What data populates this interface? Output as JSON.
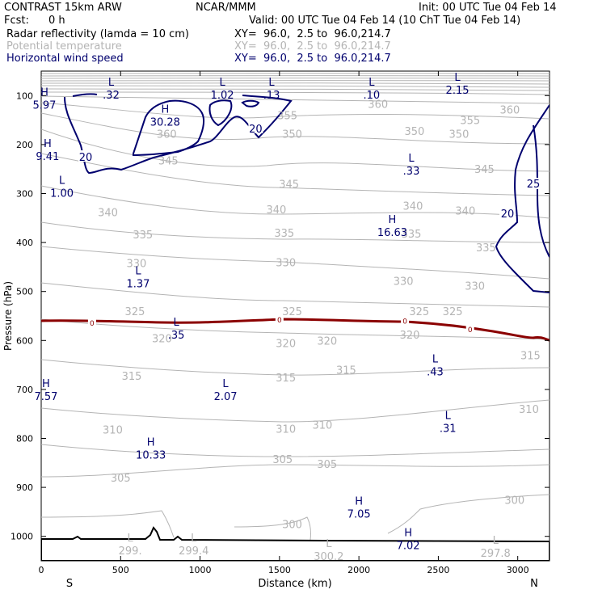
{
  "header": {
    "model": "CONTRAST 15km ARW",
    "org": "NCAR/MMM",
    "init": "Init: 00 UTC Tue 04 Feb 14",
    "fcst_label": "Fcst:",
    "fcst_value": "0 h",
    "valid": "Valid: 00 UTC Tue 04 Feb 14 (10 ChT Tue 04 Feb 14)"
  },
  "fields": [
    {
      "name": "Radar reflectivity (lamda = 10 cm)",
      "xy": "XY=  96.0,  2.5 to  96.0,214.7",
      "color": "#000000"
    },
    {
      "name": "Potential temperature",
      "xy": "XY=  96.0,  2.5 to  96.0,214.7",
      "color": "#b4b4b4"
    },
    {
      "name": "Horizontal wind speed",
      "xy": "XY=  96.0,  2.5 to  96.0,214.7",
      "color": "#00006e"
    }
  ],
  "colors": {
    "theta": "#b4b4b4",
    "wind": "#00006e",
    "reflectivity": "#8b0000",
    "terrain": "#000000"
  },
  "chart_data": {
    "type": "contour_cross_section",
    "xlabel": "Distance (km)",
    "ylabel": "Pressure (hPa)",
    "xlim": [
      0,
      3200
    ],
    "ylim": [
      1050,
      50
    ],
    "x_ticks": [
      0,
      500,
      1000,
      1500,
      2000,
      2500,
      3000
    ],
    "y_ticks": [
      100,
      200,
      300,
      400,
      500,
      600,
      700,
      800,
      900,
      1000
    ],
    "start_label": "S",
    "end_label": "N",
    "theta_labels": [
      {
        "x": 2120,
        "p": 117,
        "v": "360"
      },
      {
        "x": 2950,
        "p": 128,
        "v": "360"
      },
      {
        "x": 1550,
        "p": 140,
        "v": "355"
      },
      {
        "x": 2700,
        "p": 150,
        "v": "355"
      },
      {
        "x": 790,
        "p": 178,
        "v": "360"
      },
      {
        "x": 1580,
        "p": 178,
        "v": "350"
      },
      {
        "x": 2350,
        "p": 172,
        "v": "350"
      },
      {
        "x": 2630,
        "p": 178,
        "v": "350"
      },
      {
        "x": 800,
        "p": 232,
        "v": "345"
      },
      {
        "x": 1560,
        "p": 280,
        "v": "345"
      },
      {
        "x": 2790,
        "p": 250,
        "v": "345"
      },
      {
        "x": 1480,
        "p": 332,
        "v": "340"
      },
      {
        "x": 2340,
        "p": 325,
        "v": "340"
      },
      {
        "x": 2670,
        "p": 335,
        "v": "340"
      },
      {
        "x": 420,
        "p": 338,
        "v": "340"
      },
      {
        "x": 640,
        "p": 383,
        "v": "335"
      },
      {
        "x": 1530,
        "p": 380,
        "v": "335"
      },
      {
        "x": 2330,
        "p": 382,
        "v": "335"
      },
      {
        "x": 2800,
        "p": 410,
        "v": "335"
      },
      {
        "x": 600,
        "p": 442,
        "v": "330"
      },
      {
        "x": 1540,
        "p": 440,
        "v": "330"
      },
      {
        "x": 2280,
        "p": 478,
        "v": "330"
      },
      {
        "x": 2730,
        "p": 488,
        "v": "330"
      },
      {
        "x": 590,
        "p": 540,
        "v": "325"
      },
      {
        "x": 1580,
        "p": 540,
        "v": "325"
      },
      {
        "x": 2380,
        "p": 540,
        "v": "325"
      },
      {
        "x": 2590,
        "p": 540,
        "v": "325"
      },
      {
        "x": 760,
        "p": 595,
        "v": "320"
      },
      {
        "x": 1540,
        "p": 605,
        "v": "320"
      },
      {
        "x": 1800,
        "p": 600,
        "v": "320"
      },
      {
        "x": 2320,
        "p": 588,
        "v": "320"
      },
      {
        "x": 3080,
        "p": 630,
        "v": "315"
      },
      {
        "x": 570,
        "p": 672,
        "v": "315"
      },
      {
        "x": 1540,
        "p": 675,
        "v": "315"
      },
      {
        "x": 1920,
        "p": 660,
        "v": "315"
      },
      {
        "x": 3070,
        "p": 740,
        "v": "310"
      },
      {
        "x": 450,
        "p": 782,
        "v": "310"
      },
      {
        "x": 1540,
        "p": 780,
        "v": "310"
      },
      {
        "x": 1770,
        "p": 772,
        "v": "310"
      },
      {
        "x": 1520,
        "p": 842,
        "v": "305"
      },
      {
        "x": 1800,
        "p": 852,
        "v": "305"
      },
      {
        "x": 500,
        "p": 880,
        "v": "305"
      },
      {
        "x": 2980,
        "p": 925,
        "v": "300"
      },
      {
        "x": 1580,
        "p": 975,
        "v": "300"
      }
    ],
    "wind_labels": [
      {
        "x": 280,
        "p": 225,
        "v": "20"
      },
      {
        "x": 1350,
        "p": 167,
        "v": "20"
      },
      {
        "x": 2930,
        "p": 710,
        "v": "20",
        "note": "placeholder"
      }
    ],
    "reflectivity_labels": [
      {
        "x": 320,
        "p": 565,
        "v": "0"
      },
      {
        "x": 1500,
        "p": 558,
        "v": "0"
      },
      {
        "x": 2290,
        "p": 561,
        "v": "0"
      },
      {
        "x": 2700,
        "p": 578,
        "v": "0"
      }
    ],
    "wind_extremes": [
      {
        "kind": "L",
        "x": 430,
        "p": 80,
        "v": ".32"
      },
      {
        "kind": "H",
        "x": 10,
        "p": 100,
        "v": "5.97"
      },
      {
        "kind": "L",
        "x": 1130,
        "p": 80,
        "v": "1.02"
      },
      {
        "kind": "L",
        "x": 1440,
        "p": 80,
        "v": ".13"
      },
      {
        "kind": "L",
        "x": 2070,
        "p": 80,
        "v": ".10"
      },
      {
        "kind": "L",
        "x": 2610,
        "p": 70,
        "v": "2.15"
      },
      {
        "kind": "H",
        "x": 770,
        "p": 135,
        "v": "30.28"
      },
      {
        "kind": "H",
        "x": 30,
        "p": 205,
        "v": "9.41"
      },
      {
        "kind": "L",
        "x": 2320,
        "p": 235,
        "v": ".33"
      },
      {
        "kind": "L",
        "x": 120,
        "p": 280,
        "v": "1.00"
      },
      {
        "kind": "H",
        "x": 2200,
        "p": 360,
        "v": "16.63"
      },
      {
        "kind": "L",
        "x": 600,
        "p": 465,
        "v": "1.37"
      },
      {
        "kind": "L",
        "x": 840,
        "p": 570,
        "v": ".35"
      },
      {
        "kind": "L",
        "x": 2470,
        "p": 645,
        "v": ".43"
      },
      {
        "kind": "H",
        "x": 20,
        "p": 695,
        "v": "7.57"
      },
      {
        "kind": "L",
        "x": 1150,
        "p": 695,
        "v": "2.07"
      },
      {
        "kind": "L",
        "x": 2550,
        "p": 760,
        "v": ".31"
      },
      {
        "kind": "H",
        "x": 680,
        "p": 815,
        "v": "10.33"
      },
      {
        "kind": "H",
        "x": 1990,
        "p": 935,
        "v": "7.05"
      },
      {
        "kind": "H",
        "x": 2300,
        "p": 1000,
        "v": "7.02"
      },
      {
        "kind": "L",
        "x": 550,
        "p": 1010,
        "v": "299.",
        "muted": true
      },
      {
        "kind": "L",
        "x": 950,
        "p": 1010,
        "v": "299.4",
        "muted": true
      },
      {
        "kind": "L",
        "x": 1800,
        "p": 1022,
        "v": "300.2",
        "muted": true
      },
      {
        "kind": "L",
        "x": 2850,
        "p": 1015,
        "v": "297.8",
        "muted": true
      }
    ]
  }
}
